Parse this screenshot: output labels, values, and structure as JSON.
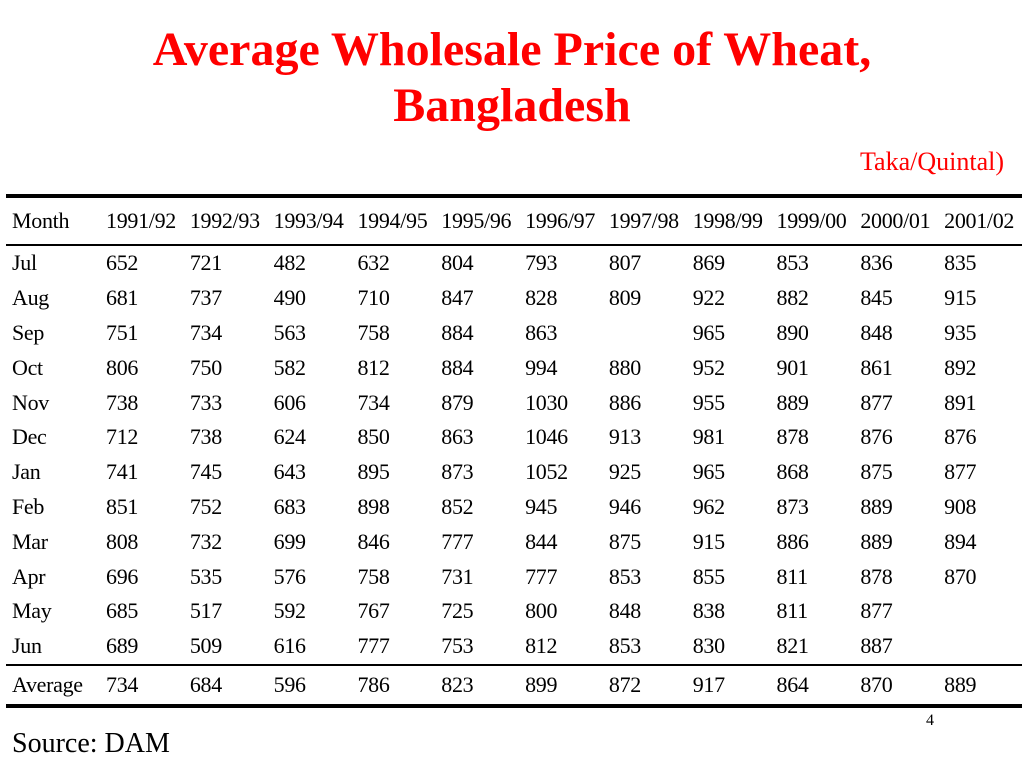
{
  "title_line1": "Average Wholesale Price of Wheat,",
  "title_line2": "Bangladesh",
  "unit": "Taka/Quintal)",
  "table": {
    "headers": [
      "Month",
      "1991/92",
      "1992/93",
      "1993/94",
      "1994/95",
      "1995/96",
      "1996/97",
      "1997/98",
      "1998/99",
      "1999/00",
      "2000/01",
      "2001/02"
    ],
    "rows": [
      [
        "Jul",
        "652",
        "721",
        "482",
        "632",
        "804",
        "793",
        "807",
        "869",
        "853",
        "836",
        "835"
      ],
      [
        "Aug",
        "681",
        "737",
        "490",
        "710",
        "847",
        "828",
        "809",
        "922",
        "882",
        "845",
        "915"
      ],
      [
        "Sep",
        "751",
        "734",
        "563",
        "758",
        "884",
        "863",
        "",
        "965",
        "890",
        "848",
        "935"
      ],
      [
        "Oct",
        "806",
        "750",
        "582",
        "812",
        "884",
        "994",
        "880",
        "952",
        "901",
        "861",
        "892"
      ],
      [
        "Nov",
        "738",
        "733",
        "606",
        "734",
        "879",
        "1030",
        "886",
        "955",
        "889",
        "877",
        "891"
      ],
      [
        "Dec",
        "712",
        "738",
        "624",
        "850",
        "863",
        "1046",
        "913",
        "981",
        "878",
        "876",
        "876"
      ],
      [
        "Jan",
        "741",
        "745",
        "643",
        "895",
        "873",
        "1052",
        "925",
        "965",
        "868",
        "875",
        "877"
      ],
      [
        "Feb",
        "851",
        "752",
        "683",
        "898",
        "852",
        "945",
        "946",
        "962",
        "873",
        "889",
        "908"
      ],
      [
        "Mar",
        "808",
        "732",
        "699",
        "846",
        "777",
        "844",
        "875",
        "915",
        "886",
        "889",
        "894"
      ],
      [
        "Apr",
        "696",
        "535",
        "576",
        "758",
        "731",
        "777",
        "853",
        "855",
        "811",
        "878",
        "870"
      ],
      [
        "May",
        "685",
        "517",
        "592",
        "767",
        "725",
        "800",
        "848",
        "838",
        "811",
        "877",
        ""
      ],
      [
        "Jun",
        "689",
        "509",
        "616",
        "777",
        "753",
        "812",
        "853",
        "830",
        "821",
        "887",
        ""
      ]
    ],
    "average": [
      "Average",
      "734",
      "684",
      "596",
      "786",
      "823",
      "899",
      "872",
      "917",
      "864",
      "870",
      "889"
    ]
  },
  "source": "Source: DAM",
  "page_number": "4",
  "colors": {
    "title": "#ff0000",
    "text": "#000000",
    "background": "#ffffff"
  }
}
